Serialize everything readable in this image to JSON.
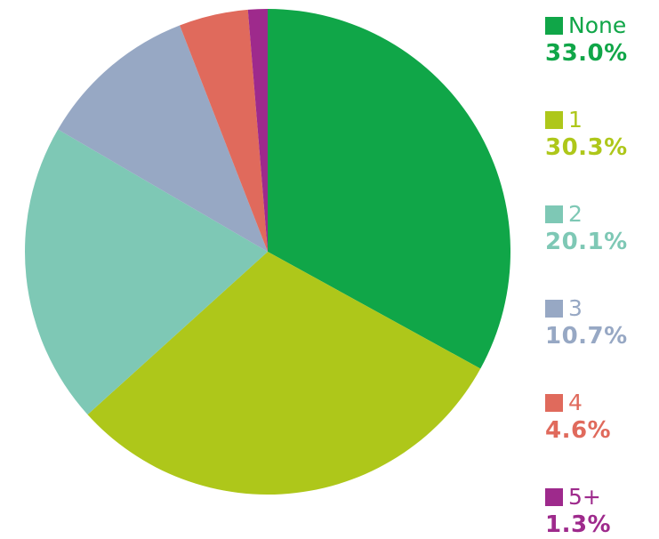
{
  "chart_data": {
    "type": "pie",
    "title": "",
    "start_angle_deg": 90,
    "direction": "clockwise",
    "categories": [
      "None",
      "1",
      "2",
      "3",
      "4",
      "5+"
    ],
    "values": [
      33.0,
      30.3,
      20.1,
      10.7,
      4.6,
      1.3
    ],
    "value_labels": [
      "33.0%",
      "30.3%",
      "20.1%",
      "10.7%",
      "4.6%",
      "1.3%"
    ],
    "colors": [
      "#10a648",
      "#aec71a",
      "#7ec8b5",
      "#97a8c4",
      "#e06a5c",
      "#9e2a8c"
    ],
    "legend_placement": "right"
  }
}
